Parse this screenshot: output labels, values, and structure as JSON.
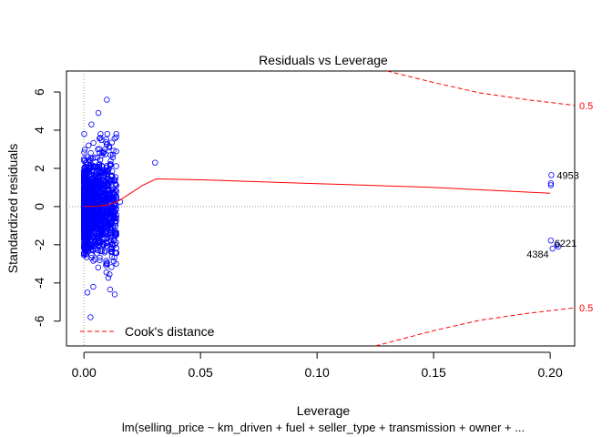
{
  "chart_data": {
    "type": "scatter",
    "title": "Residuals vs Leverage",
    "xlabel": "Leverage",
    "ylabel": "Standardized residuals",
    "caption": "lm(selling_price ~ km_driven + fuel + seller_type + transmission + owner +  ...",
    "xlim": [
      -0.0075,
      0.2105
    ],
    "ylim": [
      -7.3,
      7.1
    ],
    "x_ticks": [
      "0.00",
      "0.05",
      "0.10",
      "0.15",
      "0.20"
    ],
    "x_tick_values": [
      0.0,
      0.05,
      0.1,
      0.15,
      0.2
    ],
    "y_ticks": [
      "-6",
      "-4",
      "-2",
      "0",
      "2",
      "4",
      "6"
    ],
    "y_tick_values": [
      -6,
      -4,
      -2,
      0,
      2,
      4,
      6
    ],
    "point_color": "#0000ff",
    "smooth_color": "#ff0000",
    "cook_color": "#ff0000",
    "grid": false,
    "legend": {
      "position": "bottom-left",
      "entries": [
        {
          "label": "Cook's distance",
          "style": "dashed",
          "color": "#ff0000"
        }
      ]
    },
    "cook_contour_labels": [
      {
        "text": "0.5",
        "y": 5.3
      },
      {
        "text": "0.5",
        "y": -5.3
      }
    ],
    "cook_upper": [
      [
        0.13,
        7.3
      ],
      [
        0.15,
        6.5
      ],
      [
        0.17,
        5.95
      ],
      [
        0.19,
        5.6
      ],
      [
        0.2105,
        5.3
      ]
    ],
    "cook_lower": [
      [
        0.125,
        -7.3
      ],
      [
        0.15,
        -6.5
      ],
      [
        0.17,
        -5.95
      ],
      [
        0.19,
        -5.6
      ],
      [
        0.2105,
        -5.3
      ]
    ],
    "smooth_line": [
      [
        0.0,
        0.0
      ],
      [
        0.005,
        0.02
      ],
      [
        0.01,
        0.08
      ],
      [
        0.015,
        0.3
      ],
      [
        0.02,
        0.7
      ],
      [
        0.025,
        1.1
      ],
      [
        0.031,
        1.45
      ],
      [
        0.05,
        1.4
      ],
      [
        0.1,
        1.2
      ],
      [
        0.15,
        1.0
      ],
      [
        0.2,
        0.7
      ]
    ],
    "labeled_points": [
      {
        "label": "4953",
        "x": 0.2005,
        "y": 1.65
      },
      {
        "label": "6221",
        "x": 0.203,
        "y": -2.0
      },
      {
        "label": "4384",
        "x": 0.201,
        "y": -2.2
      }
    ],
    "outlier_points": [
      [
        0.2003,
        1.22
      ],
      [
        0.2003,
        1.12
      ],
      [
        0.2003,
        -1.78
      ],
      [
        0.2035,
        -2.1
      ],
      [
        0.0305,
        2.3
      ],
      [
        0.0155,
        0.25
      ],
      [
        0.0098,
        5.6
      ],
      [
        0.0062,
        4.9
      ],
      [
        0.0032,
        4.3
      ],
      [
        0.0028,
        -5.8
      ],
      [
        0.0015,
        -4.5
      ],
      [
        0.004,
        -4.2
      ]
    ],
    "cluster": {
      "n": 1500,
      "x_max": 0.014,
      "y_sd": 1.15,
      "seed": 7
    }
  }
}
